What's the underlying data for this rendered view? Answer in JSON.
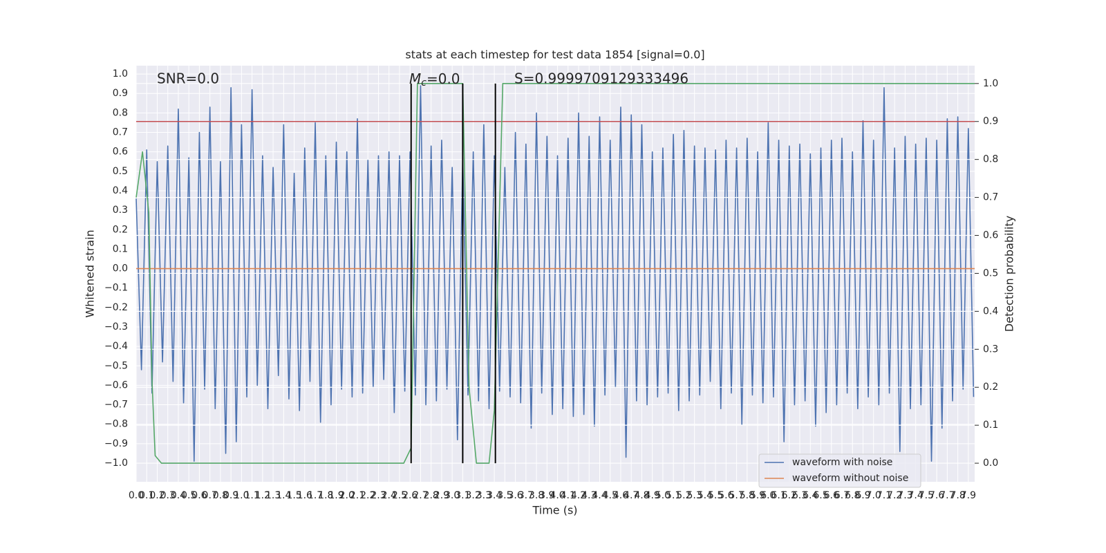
{
  "chart_data": {
    "type": "line",
    "title": "stats at each timestep for test data 1854 [signal=0.0]",
    "xlabel": "Time (s)",
    "ylabel": "Whitened strain",
    "y2label": "Detection probability",
    "annotations": [
      {
        "text": "SNR=0.0"
      },
      {
        "parts": [
          "M",
          "c",
          "=0.0"
        ]
      },
      {
        "text": "S=0.9999709129333496"
      }
    ],
    "xlim": [
      0,
      7.96
    ],
    "ylim": [
      -1.096,
      1.043
    ],
    "y2lim": [
      -0.049,
      1.047
    ],
    "grid": true,
    "legend": "lower right",
    "xticks": [
      {
        "value": 0.0,
        "label": "0.0"
      },
      {
        "value": 0.1,
        "label": "0.1"
      },
      {
        "value": 0.2,
        "label": "0.2"
      },
      {
        "value": 0.3,
        "label": "0.3"
      },
      {
        "value": 0.4,
        "label": "0.4"
      },
      {
        "value": 0.5,
        "label": "0.5"
      },
      {
        "value": 0.6,
        "label": "0.6"
      },
      {
        "value": 0.7,
        "label": "0.7"
      },
      {
        "value": 0.8,
        "label": "0.8"
      },
      {
        "value": 0.9,
        "label": "0.9"
      },
      {
        "value": 1.0,
        "label": "1.0"
      },
      {
        "value": 1.1,
        "label": "1.1"
      },
      {
        "value": 1.2,
        "label": "1.2"
      },
      {
        "value": 1.3,
        "label": "1.3"
      },
      {
        "value": 1.4,
        "label": "1.4"
      },
      {
        "value": 1.5,
        "label": "1.5"
      },
      {
        "value": 1.6,
        "label": "1.6"
      },
      {
        "value": 1.7,
        "label": "1.7"
      },
      {
        "value": 1.8,
        "label": "1.8"
      },
      {
        "value": 1.9,
        "label": "1.9"
      },
      {
        "value": 2.0,
        "label": "2.0"
      },
      {
        "value": 2.1,
        "label": "2.1"
      },
      {
        "value": 2.2,
        "label": "2.2"
      },
      {
        "value": 2.3,
        "label": "2.3"
      },
      {
        "value": 2.4,
        "label": "2.4"
      },
      {
        "value": 2.5,
        "label": "2.5"
      },
      {
        "value": 2.6,
        "label": "2.6"
      },
      {
        "value": 2.7,
        "label": "2.7"
      },
      {
        "value": 2.8,
        "label": "2.8"
      },
      {
        "value": 2.9,
        "label": "2.9"
      },
      {
        "value": 3.0,
        "label": "3.0"
      },
      {
        "value": 3.1,
        "label": "3.1"
      },
      {
        "value": 3.2,
        "label": "3.2"
      },
      {
        "value": 3.3,
        "label": "3.3"
      },
      {
        "value": 3.4,
        "label": "3.4"
      },
      {
        "value": 3.5,
        "label": "3.5"
      },
      {
        "value": 3.6,
        "label": "3.6"
      },
      {
        "value": 3.7,
        "label": "3.7"
      },
      {
        "value": 3.8,
        "label": "3.8"
      },
      {
        "value": 3.9,
        "label": "3.9"
      },
      {
        "value": 4.0,
        "label": "4.0"
      },
      {
        "value": 4.1,
        "label": "4.1"
      },
      {
        "value": 4.2,
        "label": "4.2"
      },
      {
        "value": 4.3,
        "label": "4.3"
      },
      {
        "value": 4.4,
        "label": "4.4"
      },
      {
        "value": 4.5,
        "label": "4.5"
      },
      {
        "value": 4.6,
        "label": "4.6"
      },
      {
        "value": 4.7,
        "label": "4.7"
      },
      {
        "value": 4.8,
        "label": "4.8"
      },
      {
        "value": 4.9,
        "label": "4.9"
      },
      {
        "value": 5.0,
        "label": "5.0"
      },
      {
        "value": 5.1,
        "label": "5.1"
      },
      {
        "value": 5.2,
        "label": "5.2"
      },
      {
        "value": 5.3,
        "label": "5.3"
      },
      {
        "value": 5.4,
        "label": "5.4"
      },
      {
        "value": 5.5,
        "label": "5.5"
      },
      {
        "value": 5.6,
        "label": "5.6"
      },
      {
        "value": 5.7,
        "label": "5.7"
      },
      {
        "value": 5.8,
        "label": "5.8"
      },
      {
        "value": 5.9,
        "label": "5.9"
      },
      {
        "value": 6.0,
        "label": "6.0"
      },
      {
        "value": 6.1,
        "label": "6.1"
      },
      {
        "value": 6.2,
        "label": "6.2"
      },
      {
        "value": 6.3,
        "label": "6.3"
      },
      {
        "value": 6.4,
        "label": "6.4"
      },
      {
        "value": 6.5,
        "label": "6.5"
      },
      {
        "value": 6.6,
        "label": "6.6"
      },
      {
        "value": 6.7,
        "label": "6.7"
      },
      {
        "value": 6.8,
        "label": "6.8"
      },
      {
        "value": 6.9,
        "label": "6.9"
      },
      {
        "value": 7.0,
        "label": "7.0"
      },
      {
        "value": 7.1,
        "label": "7.1"
      },
      {
        "value": 7.2,
        "label": "7.2"
      },
      {
        "value": 7.3,
        "label": "7.3"
      },
      {
        "value": 7.4,
        "label": "7.4"
      },
      {
        "value": 7.5,
        "label": "7.5"
      },
      {
        "value": 7.6,
        "label": "7.6"
      },
      {
        "value": 7.7,
        "label": "7.7"
      },
      {
        "value": 7.8,
        "label": "7.8"
      },
      {
        "value": 7.9,
        "label": "7.9"
      }
    ],
    "yticks": [
      {
        "value": -1.0,
        "label": "−1.0"
      },
      {
        "value": -0.9,
        "label": "−0.9"
      },
      {
        "value": -0.8,
        "label": "−0.8"
      },
      {
        "value": -0.7,
        "label": "−0.7"
      },
      {
        "value": -0.6,
        "label": "−0.6"
      },
      {
        "value": -0.5,
        "label": "−0.5"
      },
      {
        "value": -0.4,
        "label": "−0.4"
      },
      {
        "value": -0.3,
        "label": "−0.3"
      },
      {
        "value": -0.2,
        "label": "−0.2"
      },
      {
        "value": -0.1,
        "label": "−0.1"
      },
      {
        "value": 0.0,
        "label": "0.0"
      },
      {
        "value": 0.1,
        "label": "0.1"
      },
      {
        "value": 0.2,
        "label": "0.2"
      },
      {
        "value": 0.3,
        "label": "0.3"
      },
      {
        "value": 0.4,
        "label": "0.4"
      },
      {
        "value": 0.5,
        "label": "0.5"
      },
      {
        "value": 0.6,
        "label": "0.6"
      },
      {
        "value": 0.7,
        "label": "0.7"
      },
      {
        "value": 0.8,
        "label": "0.8"
      },
      {
        "value": 0.9,
        "label": "0.9"
      },
      {
        "value": 1.0,
        "label": "1.0"
      }
    ],
    "y2ticks": [
      {
        "value": 0.0,
        "label": "0.0"
      },
      {
        "value": 0.1,
        "label": "0.1"
      },
      {
        "value": 0.2,
        "label": "0.2"
      },
      {
        "value": 0.3,
        "label": "0.3"
      },
      {
        "value": 0.4,
        "label": "0.4"
      },
      {
        "value": 0.5,
        "label": "0.5"
      },
      {
        "value": 0.6,
        "label": "0.6"
      },
      {
        "value": 0.7,
        "label": "0.7"
      },
      {
        "value": 0.8,
        "label": "0.8"
      },
      {
        "value": 0.9,
        "label": "0.9"
      },
      {
        "value": 1.0,
        "label": "1.0"
      }
    ],
    "series": [
      {
        "name": "waveform with noise",
        "color": "#4c72b0",
        "x": [
          0,
          0.05,
          0.1,
          0.15,
          0.2,
          0.25,
          0.3,
          0.35,
          0.4,
          0.45,
          0.5,
          0.55,
          0.6,
          0.65,
          0.7,
          0.75,
          0.8,
          0.85,
          0.9,
          0.95,
          1.0,
          1.05,
          1.1,
          1.15,
          1.2,
          1.25,
          1.3,
          1.35,
          1.4,
          1.45,
          1.5,
          1.55,
          1.6,
          1.65,
          1.7,
          1.75,
          1.8,
          1.85,
          1.9,
          1.95,
          2.0,
          2.05,
          2.1,
          2.15,
          2.2,
          2.25,
          2.3,
          2.35,
          2.4,
          2.45,
          2.5,
          2.55,
          2.6,
          2.65,
          2.7,
          2.75,
          2.8,
          2.85,
          2.9,
          2.95,
          3.0,
          3.05,
          3.1,
          3.15,
          3.2,
          3.25,
          3.3,
          3.35,
          3.4,
          3.45,
          3.5,
          3.55,
          3.6,
          3.65,
          3.7,
          3.75,
          3.8,
          3.85,
          3.9,
          3.95,
          4.0,
          4.05,
          4.1,
          4.15,
          4.2,
          4.25,
          4.3,
          4.35,
          4.4,
          4.45,
          4.5,
          4.55,
          4.6,
          4.65,
          4.7,
          4.75,
          4.8,
          4.85,
          4.9,
          4.95,
          5.0,
          5.05,
          5.1,
          5.15,
          5.2,
          5.25,
          5.3,
          5.35,
          5.4,
          5.45,
          5.5,
          5.55,
          5.6,
          5.65,
          5.7,
          5.75,
          5.8,
          5.85,
          5.9,
          5.95,
          6.0,
          6.05,
          6.1,
          6.15,
          6.2,
          6.25,
          6.3,
          6.35,
          6.4,
          6.45,
          6.5,
          6.55,
          6.6,
          6.65,
          6.7,
          6.75,
          6.8,
          6.85,
          6.9,
          6.95,
          7.0,
          7.05,
          7.1,
          7.15,
          7.2,
          7.25,
          7.3,
          7.35,
          7.4,
          7.45,
          7.5,
          7.55,
          7.6,
          7.65,
          7.7,
          7.75,
          7.8,
          7.85,
          7.9,
          7.95
        ],
        "values": [
          0.36,
          -0.52,
          0.61,
          -0.64,
          0.55,
          -0.48,
          0.63,
          -0.58,
          0.82,
          -0.69,
          0.57,
          -0.99,
          0.7,
          -0.62,
          0.83,
          -0.72,
          0.55,
          -0.95,
          0.93,
          -0.89,
          0.74,
          -0.66,
          0.92,
          -0.6,
          0.58,
          -0.72,
          0.52,
          -0.55,
          0.74,
          -0.67,
          0.49,
          -0.73,
          0.62,
          -0.58,
          0.75,
          -0.79,
          0.58,
          -0.7,
          0.65,
          -0.62,
          0.6,
          -0.66,
          0.77,
          -0.64,
          0.56,
          -0.61,
          0.58,
          -0.57,
          0.6,
          -0.74,
          0.58,
          -0.63,
          0.6,
          -0.65,
          0.94,
          -0.7,
          0.63,
          -0.68,
          0.66,
          -0.62,
          0.52,
          -0.88,
          0.57,
          -0.65,
          0.6,
          -0.68,
          0.74,
          -0.72,
          0.58,
          -0.63,
          0.52,
          -0.66,
          0.7,
          -0.69,
          0.64,
          -0.82,
          0.8,
          -0.64,
          0.68,
          -0.75,
          0.58,
          -0.72,
          0.67,
          -0.76,
          0.8,
          -0.75,
          0.68,
          -0.81,
          0.78,
          -0.65,
          0.66,
          -0.61,
          0.83,
          -0.97,
          0.79,
          -0.68,
          0.74,
          -0.7,
          0.6,
          -0.66,
          0.62,
          -0.64,
          0.69,
          -0.73,
          0.71,
          -0.68,
          0.63,
          -0.65,
          0.62,
          -0.58,
          0.61,
          -0.72,
          0.66,
          -0.64,
          0.62,
          -0.8,
          0.67,
          -0.65,
          0.6,
          -0.69,
          0.75,
          -0.66,
          0.66,
          -0.89,
          0.63,
          -0.7,
          0.64,
          -0.68,
          0.59,
          -0.81,
          0.62,
          -0.74,
          0.66,
          -0.7,
          0.67,
          -0.64,
          0.6,
          -0.72,
          0.76,
          -0.66,
          0.66,
          -0.7,
          0.93,
          -0.64,
          0.62,
          -0.94,
          0.68,
          -0.72,
          0.64,
          -0.7,
          0.67,
          -0.99,
          0.66,
          -0.82,
          0.77,
          -0.68,
          0.78,
          -0.62,
          0.72,
          -0.66
        ]
      },
      {
        "name": "waveform without noise",
        "color": "#dd8452",
        "x": [
          0,
          7.96
        ],
        "values": [
          0.0,
          0.0
        ]
      },
      {
        "color": "#55a868",
        "axis": "y2",
        "x": [
          0,
          0.06,
          0.12,
          0.15,
          0.18,
          0.24,
          2.54,
          2.61,
          2.67,
          3.1,
          3.16,
          3.23,
          3.35,
          3.4,
          3.48,
          7.96
        ],
        "values": [
          0.7,
          0.82,
          0.66,
          0.22,
          0.02,
          0.0,
          0.0,
          0.04,
          1.0,
          1.0,
          0.2,
          0.0,
          0.0,
          0.14,
          1.0,
          1.0
        ]
      }
    ],
    "hlines": [
      {
        "y": 0.9,
        "axis": "y2",
        "color": "#c44e52"
      }
    ],
    "vlines": [
      {
        "x": 2.61,
        "ymin": 0,
        "ymax": 1,
        "color": "#000000"
      },
      {
        "x": 3.1,
        "ymin": 0,
        "ymax": 1,
        "color": "#000000"
      },
      {
        "x": 3.41,
        "ymin": 0,
        "ymax": 1,
        "color": "#000000"
      }
    ]
  }
}
